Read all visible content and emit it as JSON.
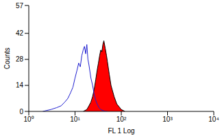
{
  "chart_data": {
    "type": "line",
    "x_label": "FL 1 Log",
    "y_label": "Counts",
    "log": "x",
    "grid": false,
    "xlim": [
      1,
      10000
    ],
    "xticks": [
      {
        "value": 1,
        "label": "10⁰"
      },
      {
        "value": 10,
        "label": "10¹"
      },
      {
        "value": 100,
        "label": "10²"
      },
      {
        "value": 1000,
        "label": "10³"
      },
      {
        "value": 10000,
        "label": "10⁴"
      }
    ],
    "ylim": [
      0,
      57
    ],
    "yticks": [
      0,
      14,
      28,
      42,
      57
    ],
    "series": [
      {
        "type": "line",
        "color": "#1f1fd0",
        "x": [
          2,
          3,
          4,
          5,
          6,
          7,
          8,
          9,
          10,
          11,
          12,
          13,
          14,
          15,
          16,
          17,
          18,
          19,
          20,
          22,
          24,
          26,
          28,
          30,
          33,
          36,
          40,
          45,
          50
        ],
        "values": [
          0,
          1,
          2,
          3,
          5,
          7,
          10,
          13,
          18,
          22,
          26,
          24,
          30,
          33,
          35,
          31,
          36,
          28,
          25,
          18,
          14,
          9,
          6,
          4,
          2,
          1,
          0.5,
          0,
          0
        ]
      },
      {
        "type": "area",
        "color": "#ff0000",
        "x": [
          15,
          18,
          20,
          22,
          24,
          26,
          28,
          30,
          32,
          34,
          36,
          38,
          40,
          42,
          45,
          48,
          50,
          55,
          60,
          70,
          80,
          100,
          120
        ],
        "values": [
          0,
          1,
          3,
          5,
          8,
          12,
          17,
          22,
          26,
          30,
          33,
          32,
          36,
          38,
          34,
          30,
          27,
          20,
          14,
          8,
          4,
          1,
          0
        ]
      }
    ]
  }
}
